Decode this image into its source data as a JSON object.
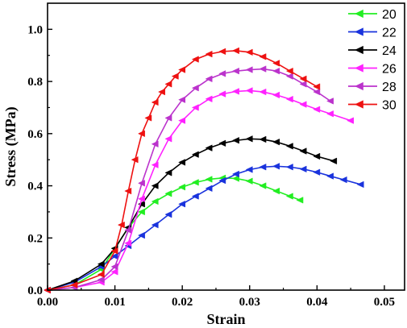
{
  "chart_data": {
    "type": "line",
    "xlabel": "Strain",
    "ylabel": "Stress (MPa)",
    "xlim": [
      0,
      0.053
    ],
    "ylim": [
      0,
      1.1
    ],
    "xticks": [
      0.0,
      0.01,
      0.02,
      0.03,
      0.04,
      0.05
    ],
    "xtick_labels": [
      "0.00",
      "0.01",
      "0.02",
      "0.03",
      "0.04",
      "0.05"
    ],
    "yticks": [
      0.0,
      0.2,
      0.4,
      0.6,
      0.8,
      1.0
    ],
    "ytick_labels": [
      "0.0",
      "0.2",
      "0.4",
      "0.6",
      "0.8",
      "1.0"
    ],
    "legend_position": "top-right",
    "grid": false,
    "marker": "left-pointing triangle",
    "series": [
      {
        "name": "20",
        "color": "#22ee22",
        "x": [
          0,
          0.004,
          0.008,
          0.01,
          0.012,
          0.014,
          0.016,
          0.018,
          0.02,
          0.022,
          0.024,
          0.026,
          0.028,
          0.03,
          0.032,
          0.034,
          0.036,
          0.0375
        ],
        "y": [
          0,
          0.02,
          0.08,
          0.16,
          0.24,
          0.3,
          0.34,
          0.37,
          0.395,
          0.413,
          0.425,
          0.43,
          0.428,
          0.418,
          0.4,
          0.38,
          0.36,
          0.345
        ]
      },
      {
        "name": "22",
        "color": "#1a33dd",
        "x": [
          0,
          0.004,
          0.008,
          0.01,
          0.012,
          0.014,
          0.016,
          0.018,
          0.02,
          0.022,
          0.024,
          0.026,
          0.028,
          0.03,
          0.032,
          0.034,
          0.036,
          0.038,
          0.04,
          0.042,
          0.044,
          0.0465
        ],
        "y": [
          0,
          0.03,
          0.09,
          0.13,
          0.17,
          0.21,
          0.25,
          0.29,
          0.33,
          0.36,
          0.39,
          0.42,
          0.445,
          0.462,
          0.472,
          0.475,
          0.472,
          0.464,
          0.452,
          0.437,
          0.423,
          0.405
        ]
      },
      {
        "name": "24",
        "color": "#000000",
        "x": [
          0,
          0.004,
          0.008,
          0.01,
          0.012,
          0.014,
          0.016,
          0.018,
          0.02,
          0.022,
          0.024,
          0.026,
          0.028,
          0.03,
          0.032,
          0.034,
          0.036,
          0.038,
          0.04,
          0.0425
        ],
        "y": [
          0,
          0.035,
          0.1,
          0.16,
          0.24,
          0.33,
          0.4,
          0.45,
          0.49,
          0.52,
          0.545,
          0.563,
          0.574,
          0.58,
          0.578,
          0.568,
          0.552,
          0.533,
          0.513,
          0.495
        ]
      },
      {
        "name": "26",
        "color": "#ff22ff",
        "x": [
          0,
          0.004,
          0.008,
          0.01,
          0.012,
          0.014,
          0.016,
          0.018,
          0.02,
          0.022,
          0.024,
          0.026,
          0.028,
          0.03,
          0.032,
          0.034,
          0.036,
          0.038,
          0.04,
          0.042,
          0.045
        ],
        "y": [
          0,
          0.01,
          0.03,
          0.07,
          0.18,
          0.35,
          0.48,
          0.58,
          0.65,
          0.7,
          0.733,
          0.752,
          0.762,
          0.765,
          0.76,
          0.748,
          0.732,
          0.712,
          0.693,
          0.676,
          0.65
        ]
      },
      {
        "name": "28",
        "color": "#bb33cc",
        "x": [
          0,
          0.004,
          0.008,
          0.01,
          0.012,
          0.014,
          0.016,
          0.018,
          0.02,
          0.022,
          0.024,
          0.026,
          0.028,
          0.03,
          0.032,
          0.034,
          0.036,
          0.038,
          0.04,
          0.042
        ],
        "y": [
          0,
          0.01,
          0.04,
          0.09,
          0.23,
          0.41,
          0.56,
          0.66,
          0.73,
          0.775,
          0.81,
          0.83,
          0.84,
          0.845,
          0.848,
          0.84,
          0.82,
          0.79,
          0.76,
          0.725
        ]
      },
      {
        "name": "30",
        "color": "#ee1111",
        "x": [
          0,
          0.004,
          0.008,
          0.01,
          0.011,
          0.012,
          0.013,
          0.014,
          0.015,
          0.016,
          0.017,
          0.018,
          0.019,
          0.02,
          0.022,
          0.024,
          0.026,
          0.028,
          0.03,
          0.032,
          0.034,
          0.036,
          0.038,
          0.04
        ],
        "y": [
          0,
          0.02,
          0.06,
          0.15,
          0.25,
          0.38,
          0.5,
          0.6,
          0.66,
          0.72,
          0.76,
          0.79,
          0.82,
          0.845,
          0.885,
          0.905,
          0.915,
          0.918,
          0.912,
          0.895,
          0.87,
          0.84,
          0.81,
          0.78
        ]
      }
    ]
  }
}
